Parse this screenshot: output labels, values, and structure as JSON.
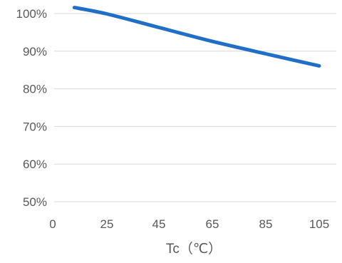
{
  "chart_data": {
    "type": "line",
    "xlabel": "Tc（℃）",
    "ylabel": "",
    "x_ticks": [
      0,
      25,
      45,
      65,
      85,
      105
    ],
    "y_ticks": [
      50,
      60,
      70,
      80,
      90,
      100
    ],
    "y_tick_labels": [
      "50%",
      "60%",
      "70%",
      "80%",
      "90%",
      "100%"
    ],
    "ylim": [
      50,
      100
    ],
    "grid": true,
    "legend": "none",
    "series": [
      {
        "color": "#1f6fc6",
        "points": [
          {
            "x": 10,
            "y": 101.6
          },
          {
            "x": 25,
            "y": 99.9
          },
          {
            "x": 45,
            "y": 96.3
          },
          {
            "x": 65,
            "y": 92.6
          },
          {
            "x": 85,
            "y": 89.3
          },
          {
            "x": 105,
            "y": 86.1
          }
        ]
      }
    ]
  }
}
